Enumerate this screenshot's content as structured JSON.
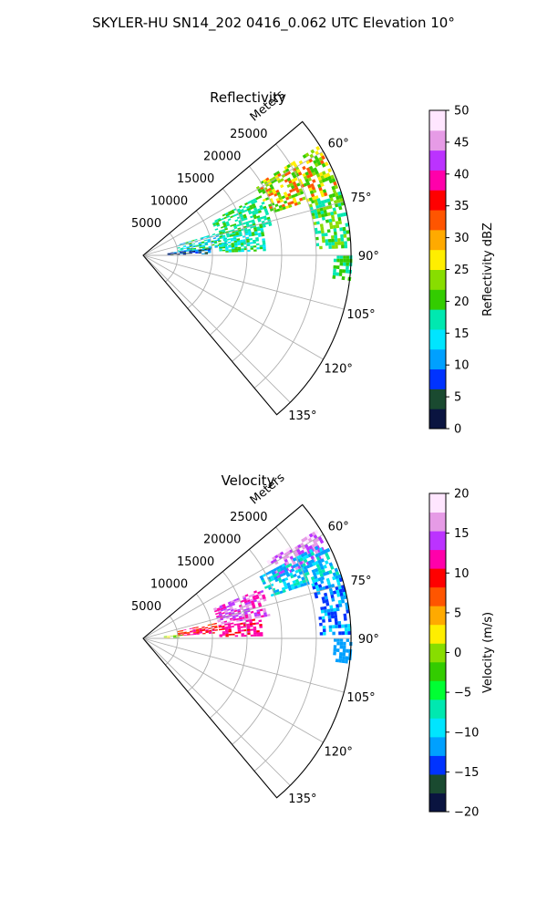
{
  "figure_title": "SKYLER-HU  SN14_202  0416_0.062 UTC Elevation 10°",
  "chart_data": [
    {
      "type": "polar-sector",
      "panel": "reflectivity",
      "title": "Reflectivity",
      "radial_label": "Meters",
      "radial_ticks": [
        5000,
        10000,
        15000,
        20000,
        25000
      ],
      "radial_tick_labels": [
        "5000",
        "10000",
        "15000",
        "20000",
        "25000"
      ],
      "rmax": 30000,
      "theta_range_deg": [
        50,
        140
      ],
      "theta_ticks": [
        60,
        75,
        90,
        105,
        120,
        135
      ],
      "theta_tick_labels": [
        "60°",
        "75°",
        "90°",
        "105°",
        "120°",
        "135°"
      ],
      "grid": true,
      "colorbar": {
        "label": "Reflectivity dBZ",
        "vmin": 0,
        "vmax": 50,
        "ticks": [
          0,
          5,
          10,
          15,
          20,
          25,
          30,
          35,
          40,
          45,
          50
        ],
        "tick_labels": [
          "0",
          "5",
          "10",
          "15",
          "20",
          "25",
          "30",
          "35",
          "40",
          "45",
          "50"
        ],
        "stops": [
          "#0a1440",
          "#1a4a30",
          "#0033ff",
          "#00a0ff",
          "#00e5ff",
          "#00e8b0",
          "#33cc00",
          "#88dd00",
          "#ffee00",
          "#ffaa00",
          "#ff5500",
          "#ff0000",
          "#ff00aa",
          "#bb33ff",
          "#e69be6",
          "#ffe6ff"
        ]
      },
      "echo_regions": [
        {
          "az_min": 58,
          "az_max": 72,
          "r_min": 19000,
          "r_max": 29500,
          "values": [
            20,
            24,
            28,
            33
          ]
        },
        {
          "az_min": 72,
          "az_max": 88,
          "r_min": 25000,
          "r_max": 29800,
          "values": [
            18,
            20,
            22
          ]
        },
        {
          "az_min": 63,
          "az_max": 78,
          "r_min": 11000,
          "r_max": 19000,
          "values": [
            16,
            18,
            20
          ]
        },
        {
          "az_min": 73,
          "az_max": 85,
          "r_min": 5000,
          "r_max": 12000,
          "values": [
            12,
            14,
            16,
            18,
            20
          ]
        },
        {
          "az_min": 84,
          "az_max": 89,
          "r_min": 3500,
          "r_max": 9500,
          "values": [
            3,
            5,
            8,
            11
          ]
        },
        {
          "az_min": 77,
          "az_max": 88,
          "r_min": 11000,
          "r_max": 17500,
          "values": [
            13,
            16,
            19
          ]
        },
        {
          "az_min": 90,
          "az_max": 97,
          "r_min": 27500,
          "r_max": 29900,
          "values": [
            18,
            20
          ]
        }
      ]
    },
    {
      "type": "polar-sector",
      "panel": "velocity",
      "title": "Velocity",
      "radial_label": "Meters",
      "radial_ticks": [
        5000,
        10000,
        15000,
        20000,
        25000
      ],
      "radial_tick_labels": [
        "5000",
        "10000",
        "15000",
        "20000",
        "25000"
      ],
      "rmax": 30000,
      "theta_range_deg": [
        50,
        140
      ],
      "theta_ticks": [
        60,
        75,
        90,
        105,
        120,
        135
      ],
      "theta_tick_labels": [
        "60°",
        "75°",
        "90°",
        "105°",
        "120°",
        "135°"
      ],
      "grid": true,
      "colorbar": {
        "label": "Velocity (m/s)",
        "vmin": -20,
        "vmax": 20,
        "ticks": [
          -20,
          -15,
          -10,
          -5,
          0,
          5,
          10,
          15,
          20
        ],
        "tick_labels": [
          "−20",
          "−15",
          "−10",
          "−5",
          "0",
          "5",
          "10",
          "15",
          "20"
        ],
        "stops": [
          "#0a1440",
          "#1a4a30",
          "#0033ff",
          "#00a0ff",
          "#00e5ff",
          "#00e8b0",
          "#00ff33",
          "#33cc00",
          "#88dd00",
          "#ffee00",
          "#ffaa00",
          "#ff5500",
          "#ff0000",
          "#ff00aa",
          "#bb33ff",
          "#e69be6",
          "#ffe6ff"
        ]
      },
      "echo_regions": [
        {
          "az_min": 58,
          "az_max": 66,
          "r_min": 21000,
          "r_max": 29500,
          "values": [
            14,
            16,
            18
          ]
        },
        {
          "az_min": 62,
          "az_max": 72,
          "r_min": 19000,
          "r_max": 29500,
          "values": [
            -12,
            -10,
            -8,
            -11
          ]
        },
        {
          "az_min": 72,
          "az_max": 89,
          "r_min": 25500,
          "r_max": 29800,
          "values": [
            -12,
            -10,
            -13
          ]
        },
        {
          "az_min": 67,
          "az_max": 80,
          "r_min": 11000,
          "r_max": 18500,
          "values": [
            12,
            14,
            16
          ]
        },
        {
          "az_min": 78,
          "az_max": 86,
          "r_min": 5000,
          "r_max": 10500,
          "values": [
            8,
            9,
            10,
            11
          ]
        },
        {
          "az_min": 84,
          "az_max": 89,
          "r_min": 3000,
          "r_max": 5500,
          "values": [
            -2,
            0,
            2
          ]
        },
        {
          "az_min": 80,
          "az_max": 89,
          "r_min": 11000,
          "r_max": 17000,
          "values": [
            10,
            11,
            12
          ]
        },
        {
          "az_min": 90,
          "az_max": 97,
          "r_min": 27500,
          "r_max": 29900,
          "values": [
            -11,
            -12
          ]
        }
      ]
    }
  ]
}
